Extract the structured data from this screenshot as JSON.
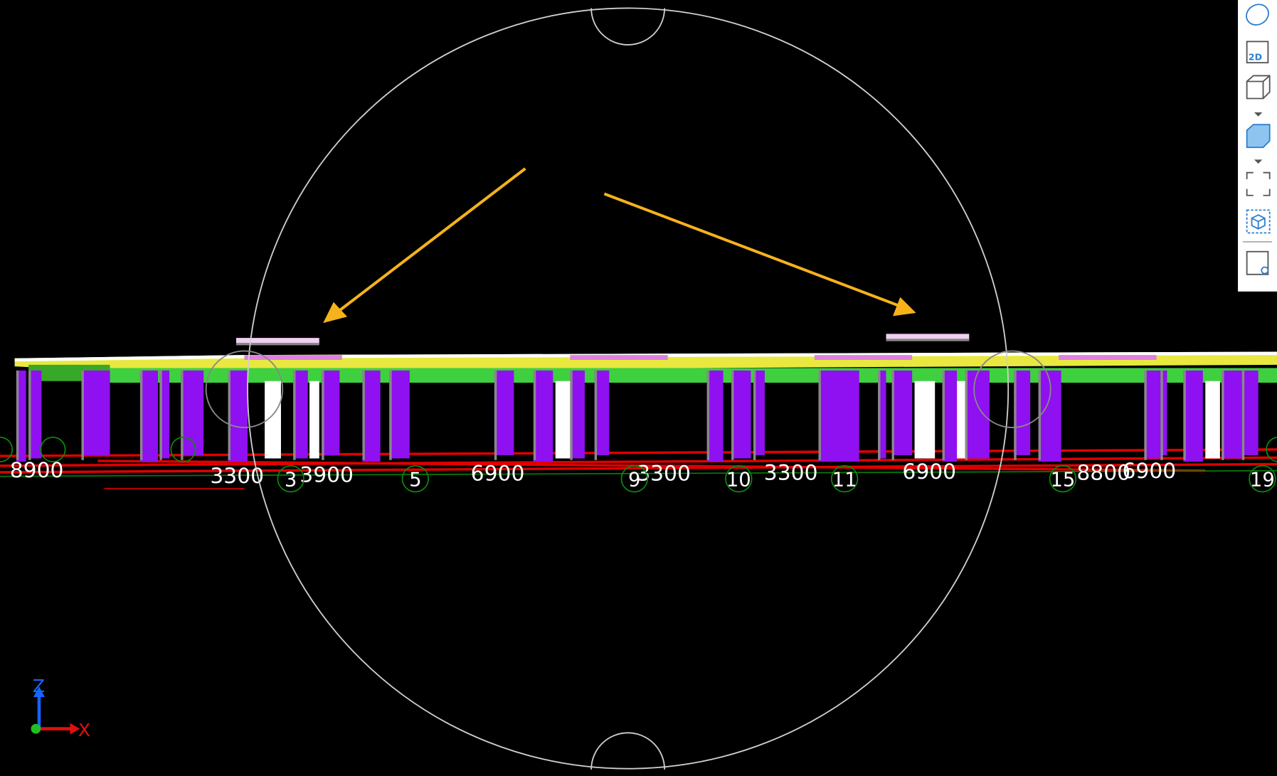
{
  "viewport": {
    "dimension_labels": [
      "8900",
      "3300",
      "3900",
      "6900",
      "3300",
      "3300",
      "6900",
      "8800",
      "6900"
    ],
    "grid_labels": [
      "3",
      "5",
      "9",
      "10",
      "11",
      "15",
      "19"
    ],
    "axis_labels": {
      "z": "Z",
      "x": "X"
    }
  },
  "toolbar": {
    "view_2d": "2D"
  }
}
